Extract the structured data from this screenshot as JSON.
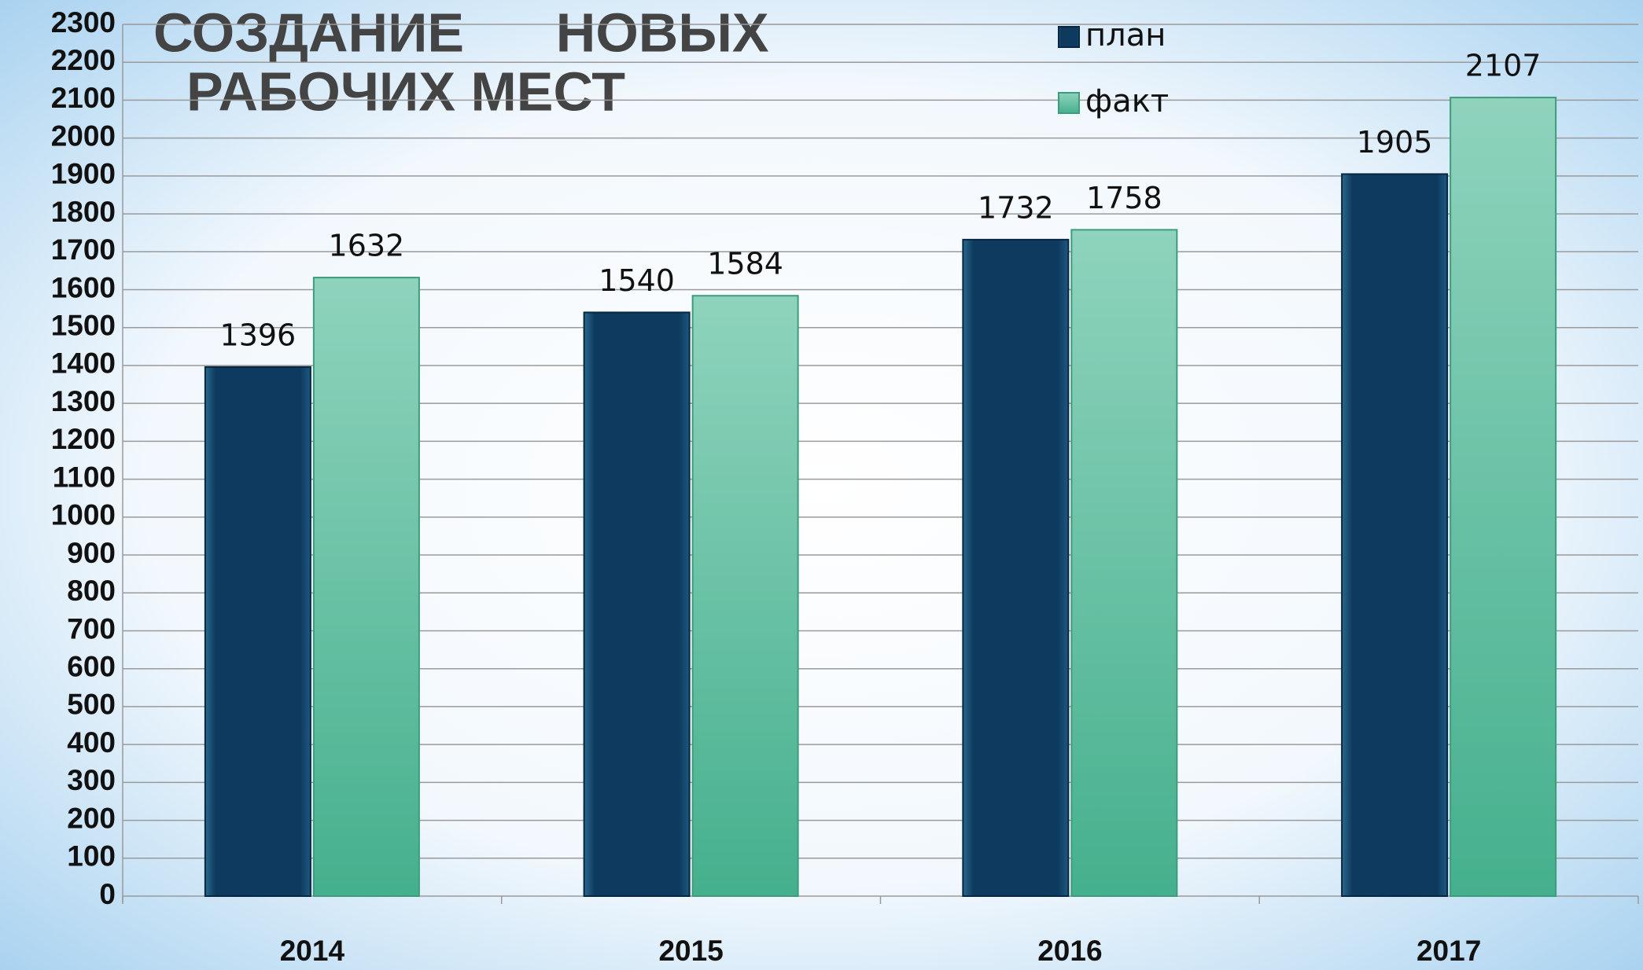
{
  "chart_data": {
    "type": "bar",
    "title": [
      "СОЗДАНИЕ      НОВЫХ",
      "РАБОЧИХ МЕСТ"
    ],
    "categories": [
      "2014",
      "2015",
      "2016",
      "2017"
    ],
    "series": [
      {
        "name": "план",
        "color": "#0d3a5e",
        "values": [
          1396,
          1540,
          1732,
          1905
        ]
      },
      {
        "name": "факт",
        "color": "#5fbf9e",
        "values": [
          1632,
          1584,
          1758,
          2107
        ]
      }
    ],
    "ylim": [
      0,
      2300
    ],
    "yticks": [
      0,
      100,
      200,
      300,
      400,
      500,
      600,
      700,
      800,
      900,
      1000,
      1100,
      1200,
      1300,
      1400,
      1500,
      1600,
      1700,
      1800,
      1900,
      2000,
      2100,
      2200,
      2300
    ],
    "grid": true,
    "legend": "top"
  }
}
